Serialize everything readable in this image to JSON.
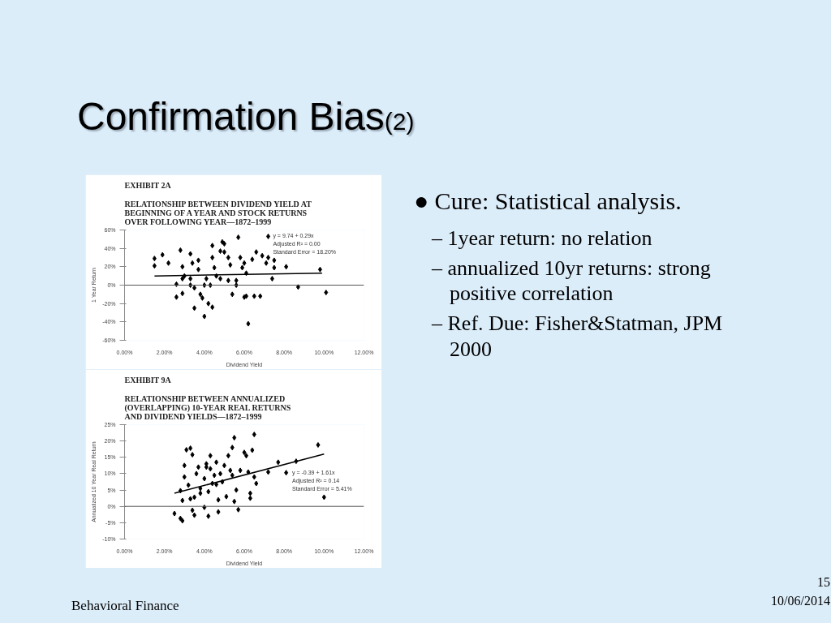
{
  "chart_data": [
    {
      "type": "scatter",
      "title": "EXHIBIT 2A",
      "subtitle": "RELATIONSHIP BETWEEN DIVIDEND YIELD AT\nBEGINNING OF A YEAR AND STOCK RETURNS\nOVER FOLLOWING YEAR—1872–1999",
      "xlabel": "Dividend Yield",
      "ylabel": "1 Year Return",
      "xlim": [
        0,
        12
      ],
      "xticks": [
        {
          "value": 0,
          "label": "0.00%"
        },
        {
          "value": 2,
          "label": "2.00%"
        },
        {
          "value": 4,
          "label": "4.00%"
        },
        {
          "value": 6,
          "label": "6.00%"
        },
        {
          "value": 8,
          "label": "8.00%"
        },
        {
          "value": 10,
          "label": "10.00%"
        },
        {
          "value": 12,
          "label": "12.00%"
        }
      ],
      "ylim": [
        -60,
        60
      ],
      "yticks": [
        {
          "value": -60,
          "label": "-60%"
        },
        {
          "value": -40,
          "label": "-40%"
        },
        {
          "value": -20,
          "label": "-20%"
        },
        {
          "value": 0,
          "label": "0%"
        },
        {
          "value": 20,
          "label": "20%"
        },
        {
          "value": 40,
          "label": "40%"
        },
        {
          "value": 60,
          "label": "60%"
        }
      ],
      "ref_lines": [
        {
          "axis": "y",
          "value": 0,
          "color": "#555555"
        }
      ],
      "annotations": [
        "y = 9.74 + 0.29x",
        "Adjusted R² = 0.00",
        "Standard Error = 18.20%"
      ],
      "series": [
        {
          "type": "scatter",
          "marker": "diamond",
          "color": "#000000",
          "x": [
            1.5,
            1.5,
            1.9,
            2.2,
            2.6,
            2.6,
            2.8,
            2.9,
            2.9,
            3.0,
            3.3,
            3.3,
            3.4,
            3.5,
            3.5,
            3.7,
            3.7,
            3.8,
            3.9,
            4.0,
            4.1,
            4.2,
            4.3,
            4.4,
            4.4,
            4.4,
            4.5,
            4.6,
            4.8,
            4.9,
            5.0,
            5.0,
            5.2,
            5.2,
            5.3,
            5.4,
            5.6,
            5.7,
            5.8,
            5.9,
            6.0,
            6.0,
            6.1,
            6.1,
            6.2,
            6.4,
            6.5,
            6.6,
            6.8,
            6.9,
            7.1,
            7.2,
            7.2,
            7.4,
            7.5,
            7.5,
            8.1,
            8.7,
            9.8,
            10.1,
            3.3,
            4.0,
            4.8,
            5.6,
            2.9
          ],
          "values": [
            29,
            21,
            33,
            24,
            1,
            -13,
            38,
            20,
            -9,
            10,
            7,
            34,
            24,
            -25,
            -3,
            27,
            17,
            -10,
            -14,
            -34,
            7,
            -20,
            0,
            43,
            30,
            -24,
            19,
            10,
            37,
            47,
            45,
            36,
            30,
            5,
            22,
            -10,
            0,
            52,
            30,
            19,
            -13,
            24,
            13,
            -12,
            -42,
            28,
            -12,
            36,
            -12,
            32,
            24,
            53,
            30,
            7,
            27,
            19,
            20,
            -2,
            17,
            -8,
            0,
            0,
            7,
            5,
            7
          ]
        },
        {
          "type": "line",
          "marker": "none",
          "color": "#000000",
          "x": [
            1.5,
            9.9
          ],
          "values": [
            10,
            13
          ]
        }
      ]
    },
    {
      "type": "scatter",
      "title": "EXHIBIT 9A",
      "subtitle": "RELATIONSHIP BETWEEN ANNUALIZED\n(OVERLAPPING) 10-YEAR REAL RETURNS\nAND DIVIDEND YIELDS—1872–1999",
      "xlabel": "Dividend Yield",
      "ylabel": "Annualized 10 Year Real Return",
      "xlim": [
        0,
        12
      ],
      "xticks": [
        {
          "value": 0,
          "label": "0.00%"
        },
        {
          "value": 2,
          "label": "2.00%"
        },
        {
          "value": 4,
          "label": "4.00%"
        },
        {
          "value": 6,
          "label": "6.00%"
        },
        {
          "value": 8,
          "label": "8.00%"
        },
        {
          "value": 10,
          "label": "10.00%"
        },
        {
          "value": 12,
          "label": "12.00%"
        }
      ],
      "ylim": [
        -10,
        25
      ],
      "yticks": [
        {
          "value": -10,
          "label": "-10%"
        },
        {
          "value": -5,
          "label": "-5%"
        },
        {
          "value": 0,
          "label": "0%"
        },
        {
          "value": 5,
          "label": "5%"
        },
        {
          "value": 10,
          "label": "10%"
        },
        {
          "value": 15,
          "label": "15%"
        },
        {
          "value": 20,
          "label": "20%"
        },
        {
          "value": 25,
          "label": "25%"
        }
      ],
      "ref_lines": [
        {
          "axis": "y",
          "value": 0,
          "color": "#555555"
        }
      ],
      "annotations": [
        "y = -0.39 + 1.61x",
        "Adjusted R² = 0.14",
        "Standard Error = 5.41%"
      ],
      "series": [
        {
          "type": "scatter",
          "marker": "diamond",
          "color": "#000000",
          "x": [
            2.5,
            2.8,
            2.9,
            2.9,
            2.8,
            3.0,
            3.0,
            3.1,
            3.3,
            3.2,
            3.4,
            3.3,
            3.4,
            3.5,
            3.5,
            3.6,
            3.7,
            3.8,
            3.8,
            4.0,
            4.0,
            4.1,
            4.1,
            4.2,
            4.2,
            4.3,
            4.3,
            4.4,
            4.5,
            4.6,
            4.6,
            4.7,
            4.7,
            4.8,
            4.9,
            5.0,
            5.1,
            5.2,
            5.3,
            5.4,
            5.4,
            5.5,
            5.5,
            5.6,
            5.7,
            5.8,
            6.0,
            6.1,
            6.2,
            6.3,
            6.3,
            6.4,
            6.5,
            6.5,
            6.6,
            7.2,
            7.7,
            8.1,
            8.6,
            9.7,
            10.0
          ],
          "values": [
            -2.2,
            -3.7,
            -4.4,
            1.8,
            4.8,
            9.0,
            12.5,
            17.3,
            17.8,
            6.5,
            15.8,
            2.3,
            -1.2,
            -2.7,
            2.8,
            10.0,
            12.0,
            5.5,
            4.0,
            -0.3,
            8.5,
            13.0,
            12.0,
            -3.0,
            4.5,
            15.5,
            11.5,
            7.0,
            9.5,
            6.7,
            13.5,
            2.0,
            -1.7,
            10.0,
            7.5,
            12.5,
            3.0,
            15.5,
            11.0,
            9.5,
            18.0,
            21.0,
            1.5,
            5.0,
            -1.0,
            11.0,
            16.5,
            15.5,
            10.5,
            2.5,
            4.0,
            17.2,
            22.0,
            9.0,
            7.0,
            10.5,
            13.5,
            10.3,
            13.8,
            18.8,
            2.8
          ]
        },
        {
          "type": "line",
          "marker": "none",
          "color": "#000000",
          "x": [
            2.5,
            10.0
          ],
          "values": [
            4,
            16
          ]
        }
      ]
    },
    {
      "type": "other",
      "title": "Confirmation Bias$_{(2)}$",
      "annotations": [
        "● Cure: Statistical analysis.",
        "– 1year return: no relation",
        "– annualized 10yr returns: strong positive correlation",
        "– Ref. Due: Fisher&Statman, JPM 2000",
        "Behavioral Finance",
        "15",
        "10/06/2014"
      ]
    }
  ]
}
